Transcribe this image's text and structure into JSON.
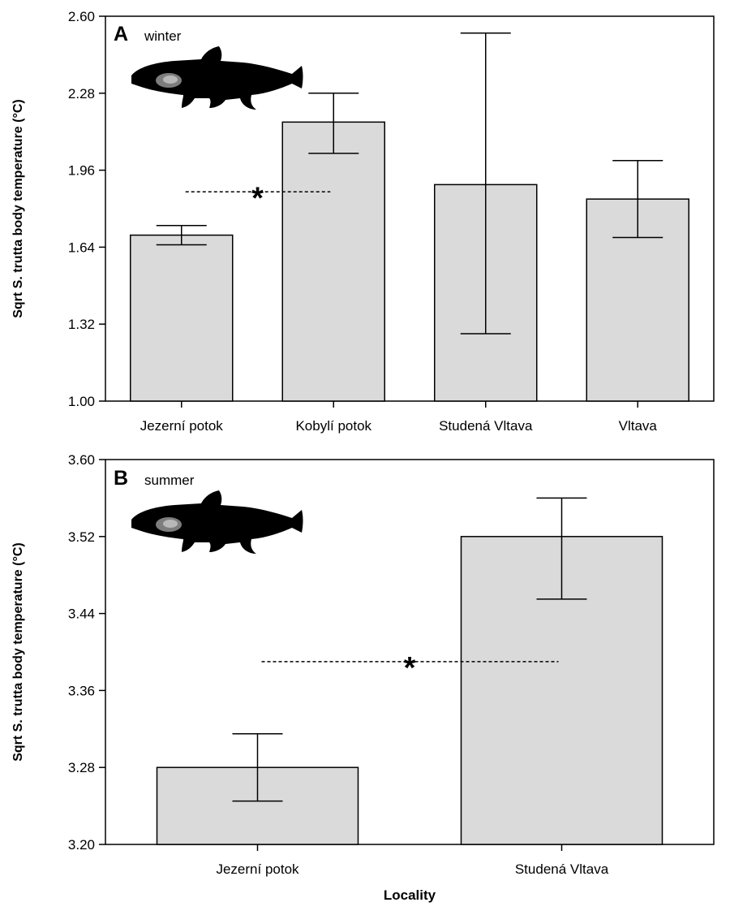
{
  "chart_data": [
    {
      "type": "bar",
      "panel_letter": "A",
      "season": "winter",
      "ylabel": "Sqrt S. trutta body temperature  (°C)",
      "xlabel": "",
      "categories": [
        "Jezerní potok",
        "Kobylí potok",
        "Studená Vltava",
        "Vltava"
      ],
      "values": [
        1.69,
        2.16,
        1.9,
        1.84
      ],
      "error_upper": [
        1.73,
        2.28,
        2.53,
        2.0
      ],
      "error_lower": [
        1.65,
        2.03,
        1.28,
        1.68
      ],
      "ylim": [
        1.0,
        2.6
      ],
      "yticks": [
        "1.00",
        "1.32",
        "1.64",
        "1.96",
        "2.28",
        "2.60"
      ],
      "significance": {
        "marker": "*",
        "between": [
          "Jezerní potok",
          "Kobylí potok"
        ],
        "y": 1.87
      },
      "bar_color": "#d9dad9",
      "icon": "trout-silhouette-icon"
    },
    {
      "type": "bar",
      "panel_letter": "B",
      "season": "summer",
      "ylabel": "Sqrt S. trutta body temperature  (°C)",
      "xlabel": "Locality",
      "categories": [
        "Jezerní potok",
        "Studená Vltava"
      ],
      "values": [
        3.28,
        3.52
      ],
      "error_upper": [
        3.315,
        3.56
      ],
      "error_lower": [
        3.245,
        3.455
      ],
      "ylim": [
        3.2,
        3.6
      ],
      "yticks": [
        "3.20",
        "3.28",
        "3.36",
        "3.44",
        "3.52",
        "3.60"
      ],
      "significance": {
        "marker": "*",
        "between": [
          "Jezerní potok",
          "Studená Vltava"
        ],
        "y": 3.39
      },
      "bar_color": "#d9dad9",
      "icon": "trout-silhouette-icon"
    }
  ]
}
